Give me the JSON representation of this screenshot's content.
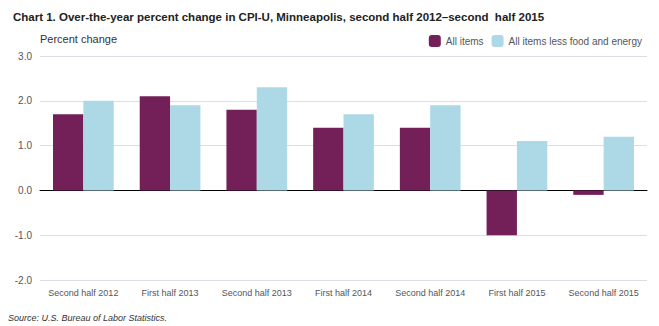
{
  "chart_data": {
    "type": "bar",
    "title": "Chart 1. Over-the-year percent change in CPI-U, Minneapolis, second half 2012–second  half 2015",
    "ylabel": "Percent change",
    "annotations": [
      "Source: U.S. Bureau of Labor Statistics."
    ],
    "categories": [
      "Second half 2012",
      "First half 2013",
      "Second half 2013",
      "First half 2014",
      "Second half 2014",
      "First half 2015",
      "Second half 2015"
    ],
    "series": [
      {
        "name": "All items",
        "color": "#722057",
        "values": [
          1.7,
          2.1,
          1.8,
          1.4,
          1.4,
          -1.0,
          -0.1
        ]
      },
      {
        "name": "All items less food and energy",
        "color": "#add8e6",
        "values": [
          2.0,
          1.9,
          2.3,
          1.7,
          1.9,
          1.1,
          1.2
        ]
      }
    ],
    "ylim": [
      -2.0,
      3.0
    ],
    "yticks": [
      {
        "value": -2.0,
        "label": "-2.0"
      },
      {
        "value": -1.0,
        "label": "-1.0"
      },
      {
        "value": 0.0,
        "label": "0.0"
      },
      {
        "value": 1.0,
        "label": "1.0"
      },
      {
        "value": 2.0,
        "label": "2.0"
      },
      {
        "value": 3.0,
        "label": "3.0"
      }
    ],
    "grid": true,
    "legend": "upper right"
  }
}
